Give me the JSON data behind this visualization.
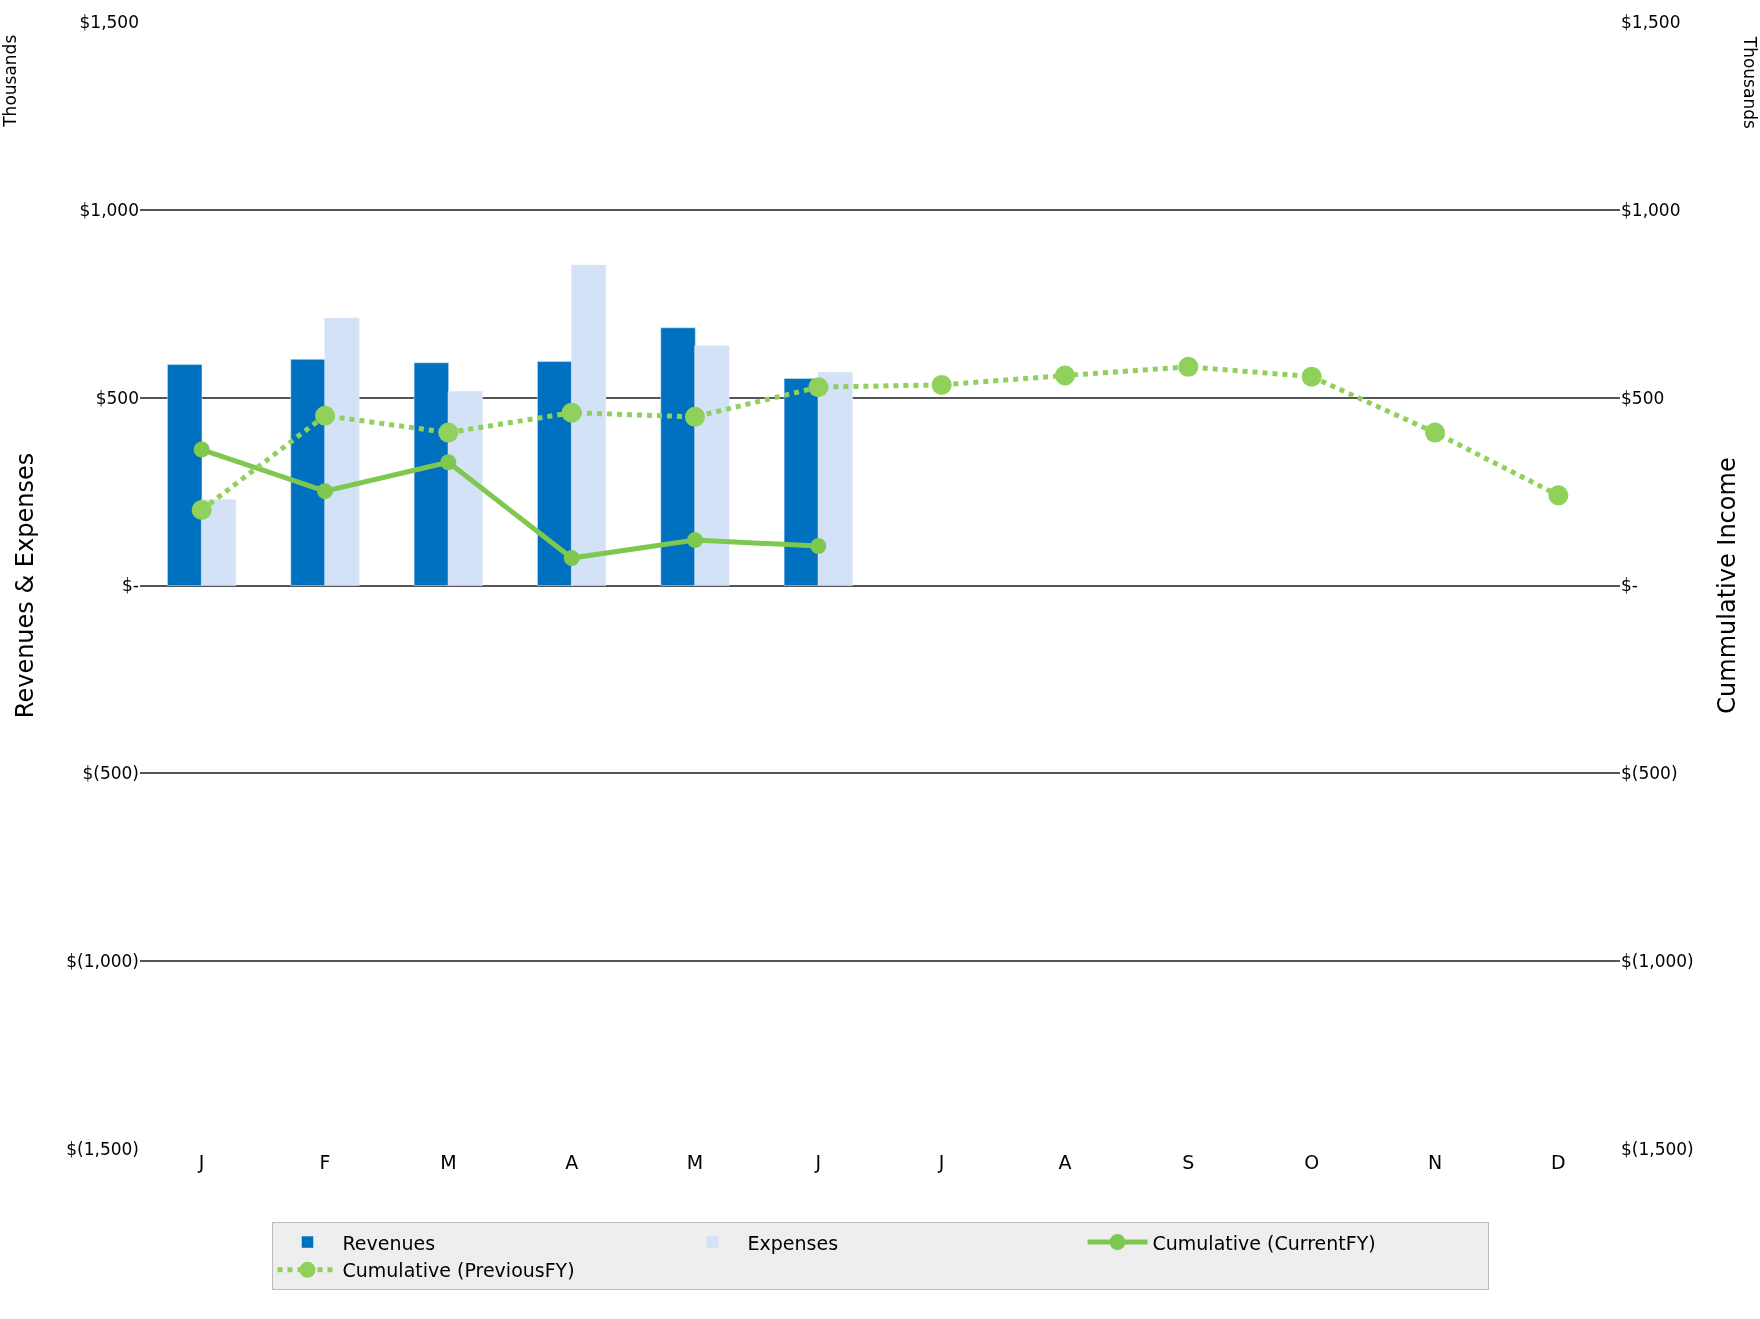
{
  "chart_data": {
    "type": "bar",
    "categories": [
      "J",
      "F",
      "M",
      "A",
      "M",
      "J",
      "J",
      "A",
      "S",
      "O",
      "N",
      "D"
    ],
    "series": [
      {
        "name": "Revenues",
        "color": "#0070c0",
        "values": [
          588,
          602,
          593,
          596,
          686,
          551,
          null,
          null,
          null,
          null,
          null,
          null
        ]
      },
      {
        "name": "Expenses",
        "color": "#d4e2f7",
        "values": [
          229,
          712,
          517,
          853,
          638,
          568,
          null,
          null,
          null,
          null,
          null,
          null
        ]
      },
      {
        "name": "Cumulative (CurrentFY)",
        "type": "line",
        "axis": "y2",
        "color": "#7ec850",
        "marker": "circle",
        "line_style": "solid",
        "values": [
          362,
          251,
          328,
          73,
          121,
          105,
          null,
          null,
          null,
          null,
          null,
          null
        ]
      },
      {
        "name": "Cumulative (PreviousFY)",
        "type": "line",
        "axis": "y2",
        "color": "#8fd15a",
        "marker": "circle",
        "line_style": "dotted",
        "values": [
          201,
          452,
          407,
          460,
          449,
          528,
          534,
          559,
          582,
          556,
          407,
          240
        ]
      }
    ],
    "ylabel": "Revenues & Expenses",
    "y2label": "Cummulative Income",
    "annotations": [
      "Thousands",
      "Thousands"
    ],
    "ylim": [
      -1500,
      1500
    ],
    "yticks": [
      {
        "value": -1500,
        "label": "$(1,500)"
      },
      {
        "value": -1000,
        "label": "$(1,000)"
      },
      {
        "value": -500,
        "label": "$(500)"
      },
      {
        "value": 0,
        "label": "$-"
      },
      {
        "value": 500,
        "label": "$500"
      },
      {
        "value": 1000,
        "label": "$1,000"
      },
      {
        "value": 1500,
        "label": "$1,500"
      }
    ],
    "y2lim": [
      -1500,
      1500
    ],
    "y2ticks": [
      {
        "value": -1500,
        "label": "$(1,500)"
      },
      {
        "value": -1000,
        "label": "$(1,000)"
      },
      {
        "value": -500,
        "label": "$(500)"
      },
      {
        "value": 0,
        "label": "$-"
      },
      {
        "value": 500,
        "label": "$500"
      },
      {
        "value": 1000,
        "label": "$1,000"
      },
      {
        "value": 1500,
        "label": "$1,500"
      }
    ],
    "grid": "y",
    "legend": "bottom"
  }
}
